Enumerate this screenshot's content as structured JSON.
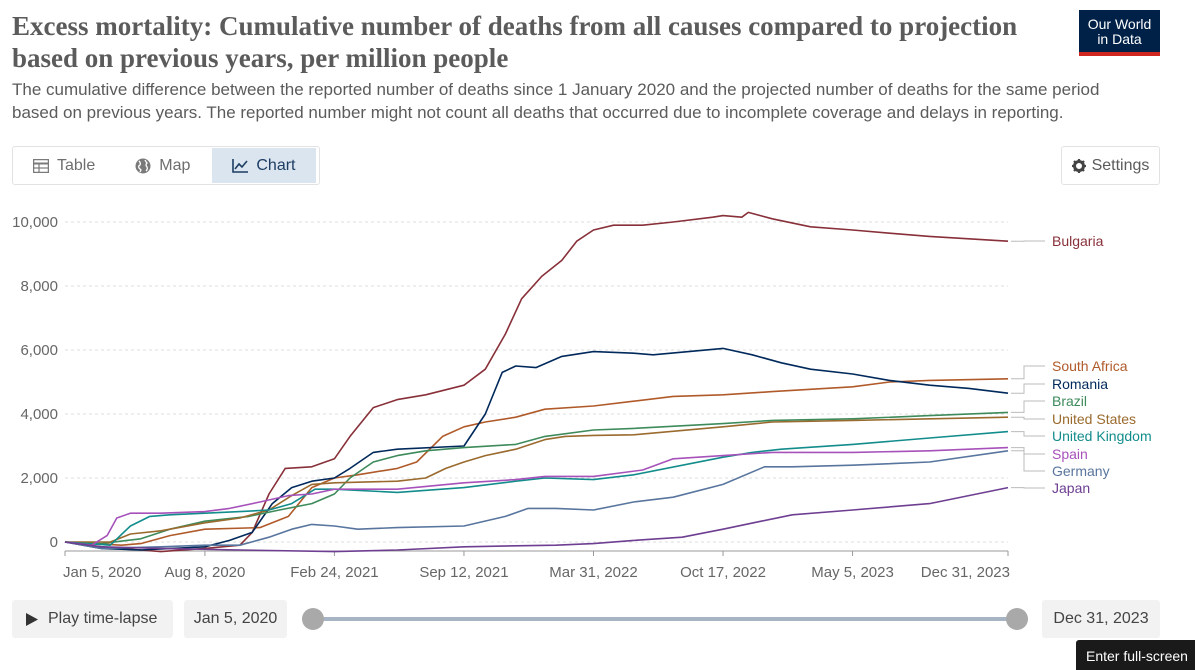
{
  "header": {
    "title": "Excess mortality: Cumulative number of deaths from all causes compared to projection based on previous years, per million people",
    "subtitle": "The cumulative difference between the reported number of deaths since 1 January 2020 and the projected number of deaths for the same period based on previous years. The reported number might not count all deaths that occurred due to incomplete coverage and delays in reporting.",
    "logo_line1": "Our World",
    "logo_line2": "in Data"
  },
  "tabs": {
    "table_label": "Table",
    "map_label": "Map",
    "chart_label": "Chart",
    "active": "chart"
  },
  "settings": {
    "label": "Settings"
  },
  "controls": {
    "play_label": "Play time-lapse",
    "start_date": "Jan 5, 2020",
    "end_date": "Dec 31, 2023",
    "slider_start": 0,
    "slider_end": 1,
    "fullscreen_label": "Enter full-screen"
  },
  "chart_data": {
    "type": "line",
    "title": "",
    "xlabel": "",
    "ylabel": "",
    "ylim": [
      -100,
      10500
    ],
    "xlim": [
      "2020-01-05",
      "2023-12-31"
    ],
    "y_ticks": [
      0,
      2000,
      4000,
      6000,
      8000,
      10000
    ],
    "y_tick_labels": [
      "0",
      "2,000",
      "4,000",
      "6,000",
      "8,000",
      "10,000"
    ],
    "x_ticks": [
      "2020-01-05",
      "2020-08-08",
      "2021-02-24",
      "2021-09-12",
      "2022-03-31",
      "2022-10-17",
      "2023-05-05",
      "2023-12-31"
    ],
    "x_tick_labels": [
      "Jan 5, 2020",
      "Aug 8, 2020",
      "Feb 24, 2021",
      "Sep 12, 2021",
      "Mar 31, 2022",
      "Oct 17, 2022",
      "May 5, 2023",
      "Dec 31, 2023"
    ],
    "grid": "horizontal dashed",
    "legend": "right",
    "series": [
      {
        "name": "Bulgaria",
        "color": "#883039",
        "points": [
          [
            "2020-01-05",
            0
          ],
          [
            "2020-03-01",
            -150
          ],
          [
            "2020-06-01",
            -300
          ],
          [
            "2020-08-08",
            -200
          ],
          [
            "2020-10-01",
            -100
          ],
          [
            "2020-10-20",
            300
          ],
          [
            "2020-11-15",
            1500
          ],
          [
            "2020-12-10",
            2300
          ],
          [
            "2021-01-20",
            2350
          ],
          [
            "2021-02-24",
            2600
          ],
          [
            "2021-03-20",
            3300
          ],
          [
            "2021-04-25",
            4200
          ],
          [
            "2021-06-01",
            4450
          ],
          [
            "2021-07-15",
            4600
          ],
          [
            "2021-09-12",
            4900
          ],
          [
            "2021-10-15",
            5400
          ],
          [
            "2021-11-15",
            6500
          ],
          [
            "2021-12-10",
            7600
          ],
          [
            "2022-01-10",
            8300
          ],
          [
            "2022-02-10",
            8800
          ],
          [
            "2022-03-05",
            9400
          ],
          [
            "2022-03-31",
            9750
          ],
          [
            "2022-05-01",
            9900
          ],
          [
            "2022-06-15",
            9900
          ],
          [
            "2022-08-01",
            10000
          ],
          [
            "2022-10-01",
            10150
          ],
          [
            "2022-10-17",
            10200
          ],
          [
            "2022-11-15",
            10150
          ],
          [
            "2022-11-25",
            10300
          ],
          [
            "2023-01-01",
            10100
          ],
          [
            "2023-03-01",
            9850
          ],
          [
            "2023-05-05",
            9750
          ],
          [
            "2023-07-01",
            9650
          ],
          [
            "2023-09-01",
            9550
          ],
          [
            "2023-12-31",
            9400
          ]
        ]
      },
      {
        "name": "South Africa",
        "color": "#b05a2a",
        "points": [
          [
            "2020-01-05",
            0
          ],
          [
            "2020-04-01",
            -100
          ],
          [
            "2020-05-01",
            -50
          ],
          [
            "2020-06-15",
            200
          ],
          [
            "2020-08-08",
            400
          ],
          [
            "2020-11-01",
            450
          ],
          [
            "2020-12-15",
            800
          ],
          [
            "2021-01-20",
            1700
          ],
          [
            "2021-02-24",
            2000
          ],
          [
            "2021-04-01",
            2100
          ],
          [
            "2021-06-01",
            2300
          ],
          [
            "2021-07-01",
            2500
          ],
          [
            "2021-08-10",
            3300
          ],
          [
            "2021-09-12",
            3600
          ],
          [
            "2021-10-15",
            3750
          ],
          [
            "2021-12-01",
            3900
          ],
          [
            "2022-01-15",
            4150
          ],
          [
            "2022-03-31",
            4250
          ],
          [
            "2022-06-01",
            4400
          ],
          [
            "2022-08-01",
            4550
          ],
          [
            "2022-10-17",
            4600
          ],
          [
            "2023-01-01",
            4700
          ],
          [
            "2023-05-05",
            4850
          ],
          [
            "2023-07-01",
            5000
          ],
          [
            "2023-09-01",
            5050
          ],
          [
            "2023-12-31",
            5100
          ]
        ]
      },
      {
        "name": "Romania",
        "color": "#00295b",
        "points": [
          [
            "2020-01-05",
            0
          ],
          [
            "2020-03-01",
            -200
          ],
          [
            "2020-05-01",
            -250
          ],
          [
            "2020-08-08",
            -150
          ],
          [
            "2020-09-15",
            50
          ],
          [
            "2020-10-20",
            300
          ],
          [
            "2020-11-20",
            1200
          ],
          [
            "2020-12-20",
            1700
          ],
          [
            "2021-01-20",
            1900
          ],
          [
            "2021-02-24",
            2000
          ],
          [
            "2021-03-20",
            2300
          ],
          [
            "2021-04-25",
            2800
          ],
          [
            "2021-06-01",
            2900
          ],
          [
            "2021-09-12",
            3000
          ],
          [
            "2021-10-15",
            4000
          ],
          [
            "2021-11-10",
            5300
          ],
          [
            "2021-12-01",
            5500
          ],
          [
            "2022-01-01",
            5450
          ],
          [
            "2022-02-10",
            5800
          ],
          [
            "2022-03-31",
            5950
          ],
          [
            "2022-06-01",
            5900
          ],
          [
            "2022-07-01",
            5850
          ],
          [
            "2022-10-17",
            6050
          ],
          [
            "2022-12-01",
            5850
          ],
          [
            "2023-01-15",
            5600
          ],
          [
            "2023-03-01",
            5400
          ],
          [
            "2023-05-05",
            5250
          ],
          [
            "2023-07-01",
            5050
          ],
          [
            "2023-09-01",
            4900
          ],
          [
            "2023-11-01",
            4800
          ],
          [
            "2023-12-31",
            4650
          ]
        ]
      },
      {
        "name": "Brazil",
        "color": "#3d8a5a",
        "points": [
          [
            "2020-01-05",
            0
          ],
          [
            "2020-03-01",
            -50
          ],
          [
            "2020-05-01",
            100
          ],
          [
            "2020-06-15",
            400
          ],
          [
            "2020-08-08",
            650
          ],
          [
            "2020-10-15",
            800
          ],
          [
            "2020-12-01",
            1000
          ],
          [
            "2021-01-20",
            1200
          ],
          [
            "2021-02-24",
            1500
          ],
          [
            "2021-03-20",
            2000
          ],
          [
            "2021-04-25",
            2500
          ],
          [
            "2021-06-01",
            2700
          ],
          [
            "2021-07-15",
            2850
          ],
          [
            "2021-09-12",
            2950
          ],
          [
            "2021-12-01",
            3050
          ],
          [
            "2022-01-15",
            3300
          ],
          [
            "2022-03-31",
            3500
          ],
          [
            "2022-06-01",
            3550
          ],
          [
            "2022-10-17",
            3700
          ],
          [
            "2023-01-01",
            3800
          ],
          [
            "2023-05-05",
            3850
          ],
          [
            "2023-09-01",
            3950
          ],
          [
            "2023-12-31",
            4050
          ]
        ]
      },
      {
        "name": "United States",
        "color": "#9a6a2e",
        "points": [
          [
            "2020-01-05",
            0
          ],
          [
            "2020-03-15",
            0
          ],
          [
            "2020-04-15",
            250
          ],
          [
            "2020-06-01",
            350
          ],
          [
            "2020-08-08",
            600
          ],
          [
            "2020-10-01",
            750
          ],
          [
            "2020-11-15",
            1000
          ],
          [
            "2020-12-20",
            1450
          ],
          [
            "2021-01-20",
            1800
          ],
          [
            "2021-02-24",
            1850
          ],
          [
            "2021-06-01",
            1900
          ],
          [
            "2021-07-15",
            2000
          ],
          [
            "2021-08-15",
            2300
          ],
          [
            "2021-09-12",
            2500
          ],
          [
            "2021-10-15",
            2700
          ],
          [
            "2021-12-01",
            2900
          ],
          [
            "2022-01-15",
            3200
          ],
          [
            "2022-02-15",
            3300
          ],
          [
            "2022-03-31",
            3330
          ],
          [
            "2022-06-01",
            3350
          ],
          [
            "2022-10-17",
            3600
          ],
          [
            "2023-01-01",
            3750
          ],
          [
            "2023-05-05",
            3800
          ],
          [
            "2023-12-31",
            3900
          ]
        ]
      },
      {
        "name": "United Kingdom",
        "color": "#138c8c",
        "points": [
          [
            "2020-01-05",
            0
          ],
          [
            "2020-03-15",
            -100
          ],
          [
            "2020-04-15",
            500
          ],
          [
            "2020-05-15",
            800
          ],
          [
            "2020-06-15",
            850
          ],
          [
            "2020-08-08",
            900
          ],
          [
            "2020-10-01",
            950
          ],
          [
            "2020-11-15",
            1000
          ],
          [
            "2020-12-20",
            1200
          ],
          [
            "2021-01-25",
            1650
          ],
          [
            "2021-02-24",
            1650
          ],
          [
            "2021-06-01",
            1550
          ],
          [
            "2021-09-12",
            1700
          ],
          [
            "2021-12-01",
            1900
          ],
          [
            "2022-01-15",
            2000
          ],
          [
            "2022-03-31",
            1950
          ],
          [
            "2022-06-01",
            2100
          ],
          [
            "2022-10-17",
            2650
          ],
          [
            "2022-12-01",
            2800
          ],
          [
            "2023-01-15",
            2900
          ],
          [
            "2023-05-05",
            3050
          ],
          [
            "2023-09-01",
            3250
          ],
          [
            "2023-12-31",
            3450
          ]
        ]
      },
      {
        "name": "Spain",
        "color": "#a652ba",
        "points": [
          [
            "2020-01-05",
            0
          ],
          [
            "2020-02-15",
            -100
          ],
          [
            "2020-03-10",
            200
          ],
          [
            "2020-03-25",
            750
          ],
          [
            "2020-04-15",
            900
          ],
          [
            "2020-06-01",
            900
          ],
          [
            "2020-08-08",
            950
          ],
          [
            "2020-09-15",
            1050
          ],
          [
            "2020-11-01",
            1250
          ],
          [
            "2020-12-15",
            1450
          ],
          [
            "2021-01-20",
            1500
          ],
          [
            "2021-02-24",
            1650
          ],
          [
            "2021-06-01",
            1650
          ],
          [
            "2021-09-12",
            1850
          ],
          [
            "2021-12-01",
            1950
          ],
          [
            "2022-01-15",
            2050
          ],
          [
            "2022-03-31",
            2050
          ],
          [
            "2022-06-15",
            2250
          ],
          [
            "2022-08-01",
            2600
          ],
          [
            "2022-10-17",
            2700
          ],
          [
            "2023-01-01",
            2800
          ],
          [
            "2023-05-05",
            2800
          ],
          [
            "2023-09-01",
            2850
          ],
          [
            "2023-12-31",
            2950
          ]
        ]
      },
      {
        "name": "Germany",
        "color": "#58759e",
        "points": [
          [
            "2020-01-05",
            0
          ],
          [
            "2020-03-01",
            -200
          ],
          [
            "2020-06-01",
            -150
          ],
          [
            "2020-08-08",
            -100
          ],
          [
            "2020-10-01",
            -100
          ],
          [
            "2020-11-15",
            150
          ],
          [
            "2020-12-20",
            400
          ],
          [
            "2021-01-20",
            550
          ],
          [
            "2021-02-24",
            500
          ],
          [
            "2021-04-01",
            400
          ],
          [
            "2021-06-01",
            450
          ],
          [
            "2021-09-12",
            500
          ],
          [
            "2021-11-15",
            800
          ],
          [
            "2021-12-20",
            1050
          ],
          [
            "2022-02-01",
            1050
          ],
          [
            "2022-03-31",
            1000
          ],
          [
            "2022-06-01",
            1250
          ],
          [
            "2022-08-01",
            1400
          ],
          [
            "2022-10-17",
            1800
          ],
          [
            "2022-12-20",
            2350
          ],
          [
            "2023-02-01",
            2350
          ],
          [
            "2023-05-05",
            2400
          ],
          [
            "2023-09-01",
            2500
          ],
          [
            "2023-12-31",
            2850
          ]
        ]
      },
      {
        "name": "Japan",
        "color": "#6d3e91",
        "points": [
          [
            "2020-01-05",
            0
          ],
          [
            "2020-03-01",
            -150
          ],
          [
            "2020-06-01",
            -200
          ],
          [
            "2020-10-01",
            -250
          ],
          [
            "2021-02-24",
            -300
          ],
          [
            "2021-06-01",
            -250
          ],
          [
            "2021-09-12",
            -150
          ],
          [
            "2021-12-01",
            -120
          ],
          [
            "2022-02-01",
            -100
          ],
          [
            "2022-03-31",
            -50
          ],
          [
            "2022-06-01",
            50
          ],
          [
            "2022-08-15",
            150
          ],
          [
            "2022-10-17",
            400
          ],
          [
            "2022-12-15",
            650
          ],
          [
            "2023-02-01",
            850
          ],
          [
            "2023-05-05",
            1000
          ],
          [
            "2023-09-01",
            1200
          ],
          [
            "2023-12-31",
            1700
          ]
        ]
      }
    ]
  }
}
